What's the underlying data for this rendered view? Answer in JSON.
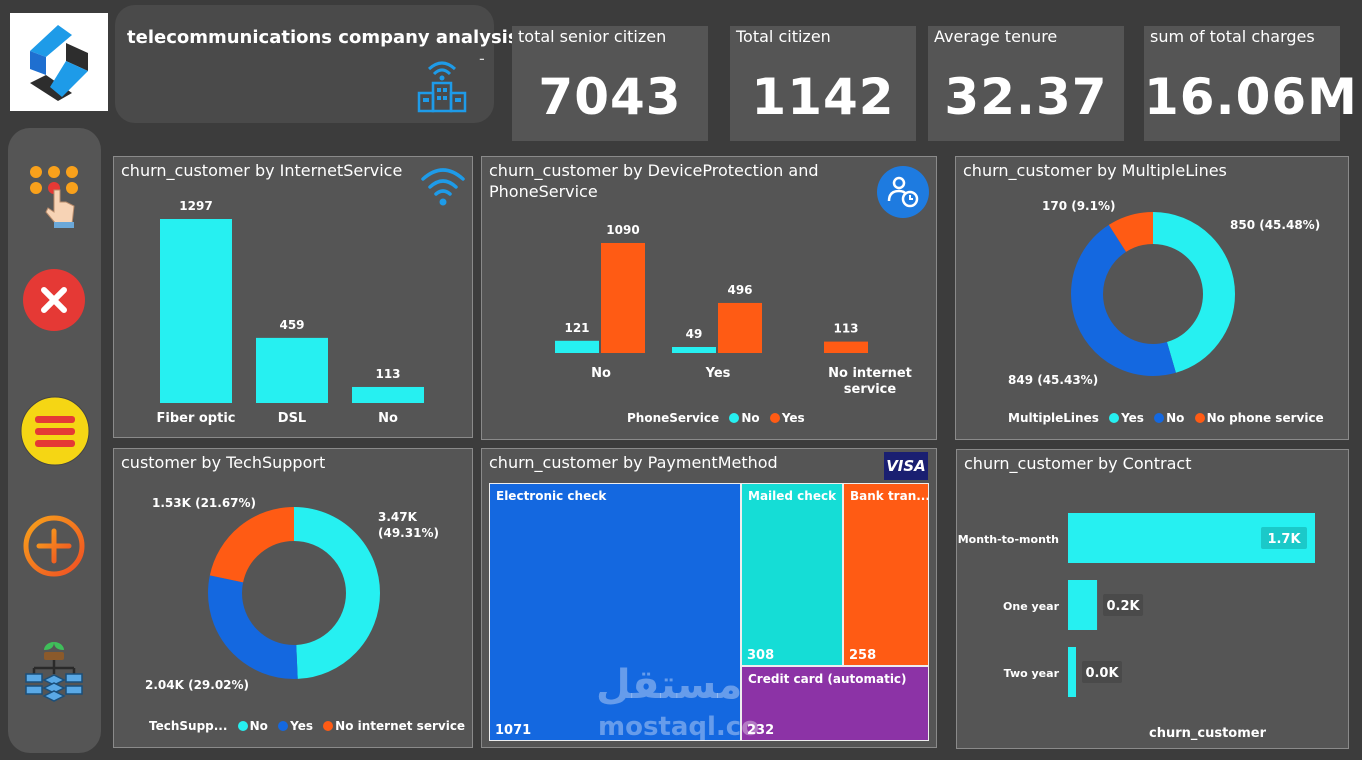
{
  "header": {
    "title": "telecommunications company analysis",
    "dash": "-"
  },
  "kpis": [
    {
      "label": "total senior citizen",
      "value": "7043"
    },
    {
      "label": "Total citizen",
      "value": "1142"
    },
    {
      "label": "Average tenure",
      "value": "32.37"
    },
    {
      "label": "sum of total charges",
      "value": "16.06M"
    }
  ],
  "sidebar": {
    "icons": [
      "touch-keypad-icon",
      "close-icon",
      "menu-icon",
      "add-icon",
      "hierarchy-icon"
    ]
  },
  "colors": {
    "cyan": "#26F0F1",
    "blue": "#1468E0",
    "orange": "#FF5B14",
    "purple": "#8C33A6",
    "teal": "#15DDD6",
    "panel": "#555555"
  },
  "watermark": {
    "arabic": "مستقل",
    "latin": "mostaql.co"
  },
  "charts": {
    "internet": {
      "title": "churn_customer by InternetService",
      "chart_data": {
        "type": "bar",
        "categories": [
          "Fiber optic",
          "DSL",
          "No"
        ],
        "values": [
          1297,
          459,
          113
        ],
        "labels": [
          "1297",
          "459",
          "113"
        ]
      }
    },
    "device": {
      "title": "churn_customer by DeviceProtection and PhoneService",
      "legend_title": "PhoneService",
      "chart_data": {
        "type": "bar",
        "categories": [
          "No",
          "Yes",
          "No internet service"
        ],
        "series": [
          {
            "name": "No",
            "values": [
              121,
              49,
              null
            ],
            "labels": [
              "121",
              "49",
              ""
            ]
          },
          {
            "name": "Yes",
            "values": [
              1090,
              496,
              113
            ],
            "labels": [
              "1090",
              "496",
              "113"
            ]
          }
        ]
      }
    },
    "multiple": {
      "title": "churn_customer by MultipleLines",
      "legend_title": "MultipleLines",
      "chart_data": {
        "type": "pie",
        "categories": [
          "Yes",
          "No",
          "No phone service"
        ],
        "values": [
          850,
          849,
          170
        ],
        "labels": [
          "850 (45.48%)",
          "849 (45.43%)",
          "170 (9.1%)"
        ]
      }
    },
    "tech": {
      "title": "customer by TechSupport",
      "legend_title": "TechSupp...",
      "chart_data": {
        "type": "pie",
        "categories": [
          "No",
          "Yes",
          "No internet service"
        ],
        "values": [
          3470,
          2040,
          1530
        ],
        "labels": [
          "3.47K (49.31%)",
          "2.04K (29.02%)",
          "1.53K (21.67%)"
        ]
      }
    },
    "payment": {
      "title": "churn_customer by PaymentMethod",
      "badge": "VISA",
      "chart_data": {
        "type": "treemap",
        "categories": [
          "Electronic check",
          "Mailed check",
          "Bank tran...",
          "Credit card (automatic)"
        ],
        "values": [
          1071,
          308,
          258,
          232
        ]
      }
    },
    "contract": {
      "title": "churn_customer by Contract",
      "xlabel": "churn_customer",
      "chart_data": {
        "type": "bar",
        "orientation": "horizontal",
        "categories": [
          "Month-to-month",
          "One year",
          "Two year"
        ],
        "values": [
          1700,
          200,
          0
        ],
        "labels": [
          "1.7K",
          "0.2K",
          "0.0K"
        ]
      }
    }
  }
}
